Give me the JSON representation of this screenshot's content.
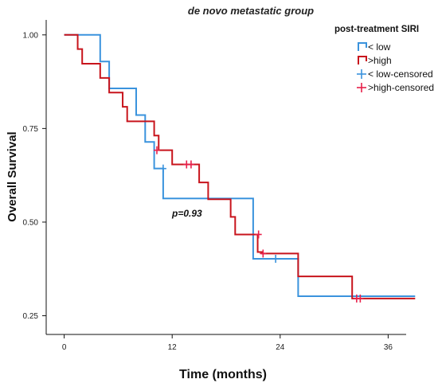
{
  "chart_data": {
    "type": "line",
    "title": "de novo metastatic group",
    "xlabel": "Time (months)",
    "ylabel": "Overall Survival",
    "xlim": [
      -2,
      38
    ],
    "ylim": [
      0.2,
      1.04
    ],
    "xticks": [
      0,
      12,
      24,
      36
    ],
    "yticks": [
      "0.25",
      "0.50",
      "0.75",
      "1.00"
    ],
    "grid": false,
    "legend": {
      "title": "post-treatment SIRI",
      "position": "top-right",
      "entries": [
        "< low",
        ">high",
        "< low-censored",
        ">high-censored"
      ]
    },
    "annotation": "p=0.93",
    "series": [
      {
        "name": "< low",
        "color": "#3a93dd",
        "x": [
          0,
          4,
          5,
          8,
          9,
          10,
          11,
          21,
          26,
          39
        ],
        "y": [
          1.0,
          0.929,
          0.857,
          0.786,
          0.714,
          0.643,
          0.563,
          0.402,
          0.302,
          0.302
        ],
        "censored": [
          [
            11,
            0.643
          ],
          [
            23.5,
            0.402
          ]
        ]
      },
      {
        "name": ">high",
        "color": "#c8141c",
        "x": [
          0,
          1.5,
          2,
          4,
          5,
          6.5,
          7,
          10,
          10.5,
          12,
          15,
          16,
          18.5,
          19,
          21.5,
          22,
          26,
          32,
          39
        ],
        "y": [
          1.0,
          0.962,
          0.923,
          0.885,
          0.846,
          0.808,
          0.769,
          0.731,
          0.692,
          0.654,
          0.606,
          0.561,
          0.514,
          0.467,
          0.42,
          0.416,
          0.355,
          0.296,
          0.296
        ],
        "censored": [
          [
            10.3,
            0.692
          ],
          [
            13.6,
            0.654
          ],
          [
            14.1,
            0.654
          ],
          [
            21.6,
            0.467
          ],
          [
            22.1,
            0.416
          ],
          [
            32.5,
            0.296
          ],
          [
            32.9,
            0.296
          ]
        ]
      }
    ]
  }
}
